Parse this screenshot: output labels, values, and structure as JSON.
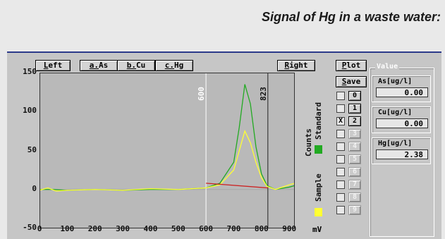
{
  "caption": "Signal of Hg in a waste water:",
  "toolbar": {
    "left": "Left",
    "as": "a.As",
    "cu": "b.Cu",
    "hg": "c.Hg",
    "right": "Right",
    "plot": "Plot",
    "save": "Save"
  },
  "side_labels": {
    "counts": "Counts",
    "standard": "Standard",
    "sample": "Sample",
    "unit": "mV"
  },
  "colors": {
    "standard": "#22aa22",
    "sample": "#ffff33",
    "baseline": "#cc2222",
    "marker": "#ffffff",
    "marker2": "#222222"
  },
  "markers": [
    {
      "x": 600,
      "label": "600"
    },
    {
      "x": 823,
      "label": "823"
    }
  ],
  "slots": [
    {
      "id": "0",
      "checked": "",
      "enabled": true
    },
    {
      "id": "1",
      "checked": "",
      "enabled": true
    },
    {
      "id": "2",
      "checked": "X",
      "enabled": true
    },
    {
      "id": "3",
      "checked": "",
      "enabled": false
    },
    {
      "id": "4",
      "checked": "",
      "enabled": false
    },
    {
      "id": "5",
      "checked": "",
      "enabled": false
    },
    {
      "id": "6",
      "checked": "",
      "enabled": false
    },
    {
      "id": "7",
      "checked": "",
      "enabled": false
    },
    {
      "id": "8",
      "checked": "",
      "enabled": false
    },
    {
      "id": "9",
      "checked": "",
      "enabled": false
    }
  ],
  "values_title": "Value",
  "values": [
    {
      "label": "As[ug/l]",
      "value": "0.00"
    },
    {
      "label": "Cu[ug/l]",
      "value": "0.00"
    },
    {
      "label": "Hg[ug/l]",
      "value": "2.38"
    }
  ],
  "chart_data": {
    "type": "line",
    "xlim": [
      0,
      920
    ],
    "ylim": [
      -50,
      150
    ],
    "xticks": [
      "0",
      "100",
      "200",
      "300",
      "400",
      "500",
      "600",
      "700",
      "800",
      "900"
    ],
    "yticks": [
      "150",
      "100",
      "50",
      "0",
      "-50"
    ],
    "series": [
      {
        "name": "Standard",
        "color": "#22aa22",
        "x": [
          0,
          50,
          100,
          200,
          300,
          400,
          500,
          600,
          650,
          700,
          720,
          740,
          760,
          780,
          800,
          820,
          850,
          900,
          920
        ],
        "y": [
          0,
          0,
          -1,
          0,
          -1,
          0,
          0,
          2,
          8,
          35,
          80,
          135,
          110,
          55,
          20,
          5,
          0,
          3,
          5
        ]
      },
      {
        "name": "Sample",
        "color": "#ffff33",
        "x": [
          0,
          30,
          60,
          100,
          200,
          300,
          400,
          500,
          600,
          650,
          700,
          720,
          740,
          760,
          780,
          800,
          820,
          850,
          900,
          920
        ],
        "y": [
          -1,
          2,
          -2,
          -1,
          0,
          -1,
          1,
          0,
          2,
          6,
          25,
          50,
          75,
          60,
          35,
          15,
          4,
          0,
          6,
          8
        ]
      },
      {
        "name": "",
        "color": "#cc2222",
        "x": [
          600,
          823
        ],
        "y": [
          8,
          2
        ]
      }
    ]
  }
}
